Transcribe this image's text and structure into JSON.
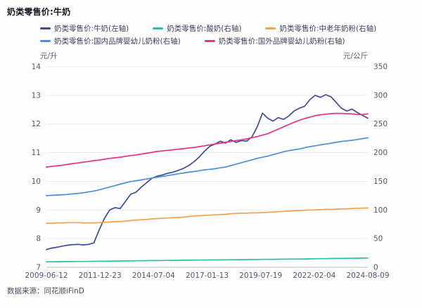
{
  "page": {
    "title": "奶类零售价:牛奶",
    "source": "数据来源：同花顺iFinD"
  },
  "chart_data": {
    "type": "line",
    "title": "奶类零售价:牛奶",
    "grid": true,
    "legend_position": "top",
    "x_tick_labels": [
      "2009-06-12",
      "2011-12-23",
      "2014-07-04",
      "2017-01-13",
      "2019-07-19",
      "2022-02-04",
      "2024-08-09"
    ],
    "y_left": {
      "unit": "元/升",
      "min": 7,
      "max": 14,
      "ticks": [
        14,
        13,
        12,
        11,
        10,
        9,
        8,
        7
      ]
    },
    "y_right": {
      "unit": "元/公斤",
      "min": 0,
      "max": 350,
      "ticks": [
        350,
        300,
        250,
        200,
        150,
        100,
        50,
        0
      ]
    },
    "colors": {
      "grid": "#eaeaf2",
      "axis": "#b9bcc8"
    },
    "legend_rows": [
      [
        0,
        1,
        2
      ],
      [
        3,
        4
      ]
    ],
    "series": [
      {
        "name": "奶类零售价:牛奶(左轴)",
        "axis": "left",
        "color": "#3C4B9E",
        "values": [
          7.62,
          7.67,
          7.7,
          7.74,
          7.77,
          7.79,
          7.8,
          7.78,
          7.8,
          7.85,
          8.3,
          8.7,
          9.0,
          9.08,
          9.05,
          9.3,
          9.55,
          9.62,
          9.8,
          9.95,
          10.1,
          10.18,
          10.22,
          10.28,
          10.32,
          10.38,
          10.45,
          10.55,
          10.68,
          10.85,
          11.05,
          11.22,
          11.3,
          11.4,
          11.33,
          11.45,
          11.36,
          11.42,
          11.4,
          11.55,
          11.9,
          12.38,
          12.2,
          12.1,
          12.22,
          12.16,
          12.28,
          12.45,
          12.55,
          12.62,
          12.85,
          13.0,
          12.93,
          13.02,
          12.95,
          12.75,
          12.55,
          12.45,
          12.52,
          12.4,
          12.3,
          12.2
        ]
      },
      {
        "name": "奶类零售价:酸奶(右轴)",
        "axis": "right",
        "color": "#2CC0A6",
        "values": [
          9.5,
          9.6,
          9.7,
          9.8,
          9.9,
          10.0,
          10.1,
          10.2,
          10.3,
          10.45,
          10.6,
          10.7,
          10.8,
          10.9,
          11.0,
          11.1,
          11.25,
          11.4,
          11.5,
          11.6,
          11.7,
          11.8,
          11.9,
          12.0,
          12.1,
          12.2,
          12.3,
          12.4,
          12.5,
          12.6,
          12.7,
          12.8,
          12.9,
          13.0,
          13.1,
          13.2,
          13.3,
          13.4,
          13.5,
          13.6,
          13.7,
          13.8,
          13.9,
          14.0,
          14.1,
          14.2,
          14.3,
          14.4,
          14.5,
          14.6,
          14.75,
          14.9,
          15.0,
          15.1,
          15.25,
          15.4,
          15.5,
          15.65,
          15.8,
          15.9,
          16.0,
          16.2
        ]
      },
      {
        "name": "奶类零售价:中老年奶粉(右轴)",
        "axis": "right",
        "color": "#F5A04B",
        "values": [
          77,
          77,
          77.5,
          77.5,
          78,
          78,
          78,
          77.5,
          77.5,
          77.5,
          78,
          78.5,
          79,
          79.5,
          80,
          80.5,
          81.5,
          82.5,
          83,
          83.5,
          84.5,
          85,
          85.5,
          86,
          86.5,
          87,
          87.5,
          88.5,
          89.5,
          90,
          90.5,
          91,
          91.5,
          92,
          92.5,
          93.5,
          94,
          94.5,
          94.5,
          95,
          95,
          95.5,
          96,
          96.5,
          97,
          97.5,
          98,
          98.5,
          99,
          99.5,
          100,
          100,
          100.5,
          101,
          101,
          101.5,
          102,
          102,
          102.5,
          103,
          103,
          103.5
        ]
      },
      {
        "name": "奶类零售价:国内品牌婴幼儿奶粉(右轴)",
        "axis": "right",
        "color": "#4A90DC",
        "values": [
          125,
          125.5,
          126,
          126.5,
          127,
          128,
          129,
          130,
          131.5,
          133,
          135,
          137.5,
          140,
          142.5,
          145,
          147.5,
          149.5,
          151,
          152.5,
          154,
          155.5,
          157,
          158.5,
          160,
          161.5,
          163,
          164.5,
          166,
          167,
          168.5,
          170,
          171,
          172,
          173.5,
          175,
          177.5,
          180,
          182.5,
          185,
          187.5,
          190,
          192,
          194,
          196.5,
          199,
          201.5,
          203.5,
          205,
          206.5,
          208.5,
          210.5,
          212,
          213.5,
          215,
          216.5,
          218,
          219.5,
          220.5,
          221.5,
          223,
          224.5,
          226
        ]
      },
      {
        "name": "奶类零售价:国外品牌婴幼儿奶粉(右轴)",
        "axis": "right",
        "color": "#E73383",
        "values": [
          175,
          176,
          177,
          178,
          179.5,
          181,
          182,
          183.5,
          184.5,
          186,
          187,
          188.5,
          190,
          191,
          192,
          193.5,
          195,
          196,
          197.5,
          199,
          200.5,
          202,
          203,
          204,
          205,
          206,
          207,
          208,
          209,
          210.5,
          212,
          213.5,
          215,
          216.5,
          218,
          219.5,
          221,
          222.5,
          224,
          226,
          228,
          230.5,
          233,
          237,
          241,
          245,
          249,
          253,
          256.5,
          259.5,
          262,
          264.5,
          266,
          267,
          268,
          268.5,
          268.5,
          268,
          267.5,
          266.5,
          266.5,
          267.5
        ]
      }
    ]
  }
}
